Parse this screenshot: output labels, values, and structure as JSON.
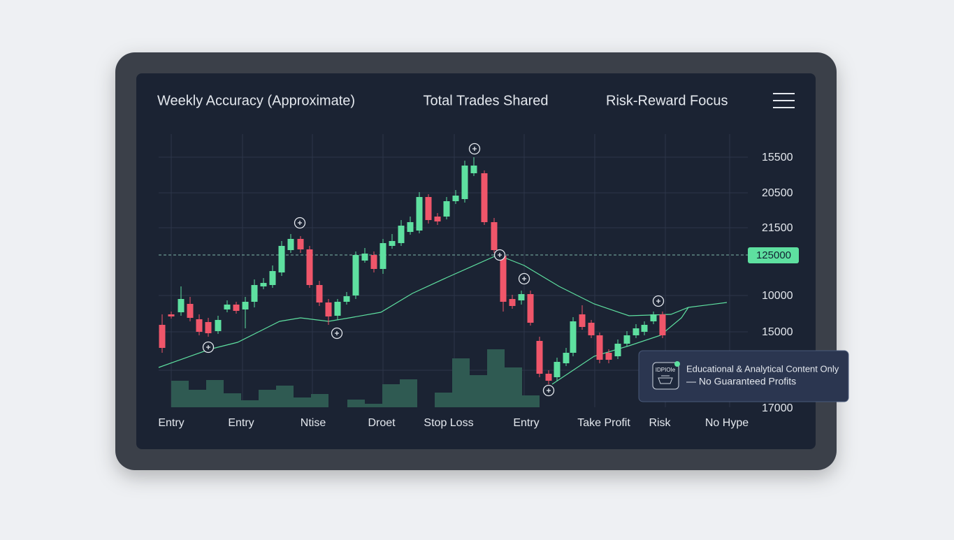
{
  "header": {
    "tabs": [
      "Weekly Accuracy (Approximate)",
      "Total Trades Shared",
      "Risk-Reward Focus"
    ]
  },
  "chart": {
    "y_labels": [
      "15500",
      "20500",
      "21500",
      "10000",
      "15000",
      "17000"
    ],
    "price_tag": "125000",
    "x_labels": [
      "Entry",
      "Entry",
      "Ntise",
      "Droet",
      "Stop Loss",
      "Entry",
      "Take Profit",
      "Risk",
      "No Hype"
    ]
  },
  "notice": {
    "icon_text": "IDPIOIe",
    "lines": [
      "Educational & Analytical Content Only",
      "— No Guaranteed Profits"
    ]
  }
}
